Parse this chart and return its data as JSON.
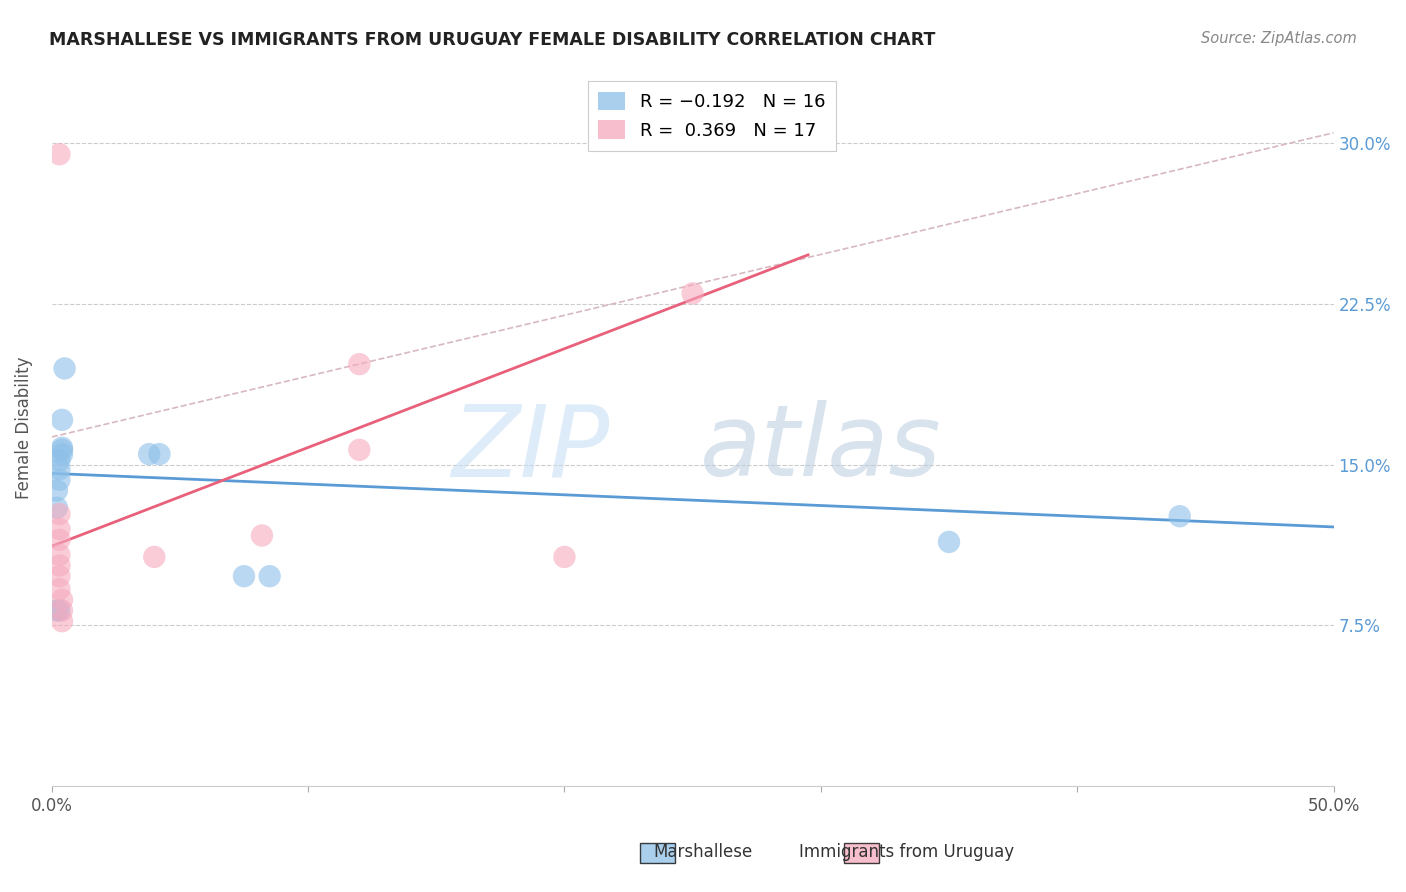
{
  "title": "MARSHALLESE VS IMMIGRANTS FROM URUGUAY FEMALE DISABILITY CORRELATION CHART",
  "source": "Source: ZipAtlas.com",
  "ylabel": "Female Disability",
  "xlim": [
    0.0,
    0.5
  ],
  "ylim": [
    0.0,
    0.335
  ],
  "marshallese_x": [
    0.002,
    0.003,
    0.002,
    0.002,
    0.003,
    0.003,
    0.003,
    0.004,
    0.004,
    0.004,
    0.004,
    0.005,
    0.038,
    0.042,
    0.075,
    0.085,
    0.35,
    0.44
  ],
  "marshallese_y": [
    0.082,
    0.082,
    0.13,
    0.138,
    0.143,
    0.148,
    0.152,
    0.157,
    0.158,
    0.171,
    0.155,
    0.195,
    0.155,
    0.155,
    0.098,
    0.098,
    0.114,
    0.126
  ],
  "uruguay_x": [
    0.003,
    0.003,
    0.003,
    0.003,
    0.003,
    0.003,
    0.003,
    0.003,
    0.004,
    0.004,
    0.004,
    0.04,
    0.082,
    0.12,
    0.12,
    0.2,
    0.25
  ],
  "uruguay_y": [
    0.295,
    0.127,
    0.12,
    0.115,
    0.108,
    0.103,
    0.098,
    0.092,
    0.087,
    0.082,
    0.077,
    0.107,
    0.117,
    0.157,
    0.197,
    0.107,
    0.23
  ],
  "blue_line_x": [
    0.0,
    0.5
  ],
  "blue_line_y": [
    0.146,
    0.121
  ],
  "pink_line_x": [
    0.0,
    0.295
  ],
  "pink_line_y": [
    0.112,
    0.248
  ],
  "dashed_line_x": [
    0.0,
    0.5
  ],
  "dashed_line_y": [
    0.163,
    0.305
  ],
  "blue_color": "#8dbfe8",
  "pink_color": "#f5aabe",
  "blue_line_color": "#5b9bd5",
  "pink_line_color": "#e8607a",
  "dashed_color": "#d8b8c0",
  "watermark_zip": "ZIP",
  "watermark_atlas": "atlas",
  "watermark_color_zip": "#c8dff5",
  "watermark_color_atlas": "#b8cce0"
}
